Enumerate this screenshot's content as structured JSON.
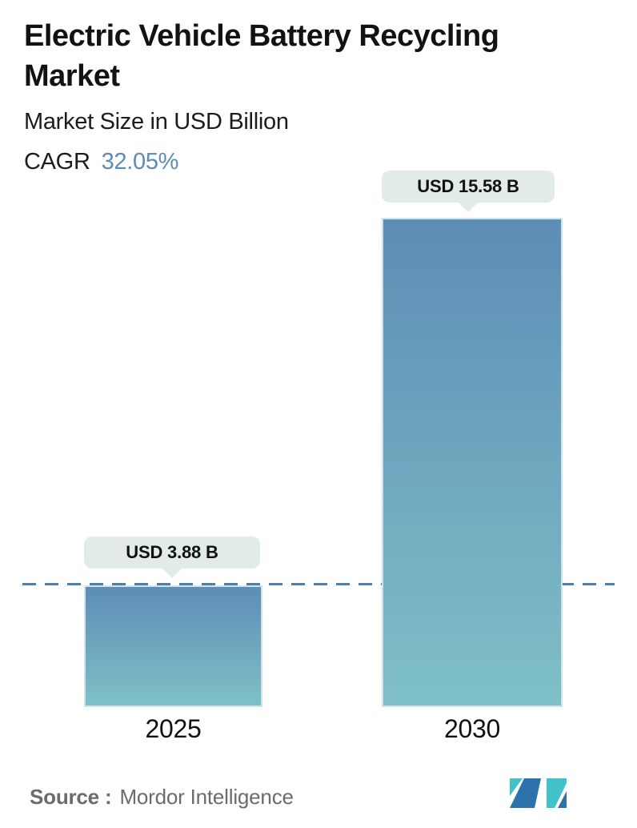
{
  "header": {
    "title": "Electric Vehicle Battery Recycling Market",
    "title_lines": [
      "Electric Vehicle Battery Recycling",
      "Market"
    ],
    "subtitle": "Market Size in USD Billion",
    "cagr_label": "CAGR",
    "cagr_value": "32.05%"
  },
  "chart_data": {
    "type": "bar",
    "title": "Electric Vehicle Battery Recycling Market",
    "subtitle": "Market Size in USD Billion",
    "unit": "USD Billion",
    "categories": [
      "2025",
      "2030"
    ],
    "values": [
      3.88,
      15.58
    ],
    "value_labels": [
      "USD 3.88 B",
      "USD 15.58 B"
    ],
    "cagr_percent": 32.05,
    "ylim": [
      0,
      15.58
    ],
    "grid": false,
    "legend": "none",
    "annotations": {
      "dashed_reference_line_at_value": 3.88,
      "dashed_line_style": "horizontal dashed, full width, behind bars"
    },
    "bar_gradient_top": "#5d8db6",
    "bar_gradient_bottom": "#7fc0c7"
  },
  "footer": {
    "source_label": "Source :",
    "source_value": "Mordor Intelligence",
    "logo_icon": "mordor-intelligence-logo"
  },
  "colors": {
    "accent_blue": "#5b8cb8",
    "dashed_line": "#4d7fa9",
    "callout_bg": "#e3eaea",
    "bar_top": "#5d8db6",
    "bar_bottom": "#7fc0c7",
    "text_dark": "#121212",
    "text_gray": "#6b6b6b",
    "logo_blue": "#2e72ac",
    "logo_teal": "#41c1ca"
  }
}
